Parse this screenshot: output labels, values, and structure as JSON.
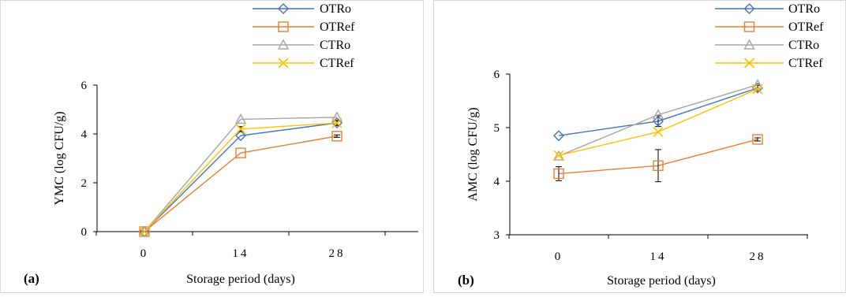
{
  "chart_data": [
    {
      "type": "line",
      "panel_label": "(a)",
      "xlabel": "Storage period (days)",
      "ylabel": "YMC (log CFU/g)",
      "categories": [
        "0",
        "14",
        "28"
      ],
      "ylim": [
        0,
        6
      ],
      "yticks": [
        "0",
        "2",
        "4",
        "6"
      ],
      "legend_position": "top-right",
      "grid": false,
      "series": [
        {
          "name": "OTRo",
          "values": [
            0,
            3.93,
            4.45
          ],
          "errors": [
            0,
            0,
            0.1
          ],
          "color": "#4472C4",
          "marker": "diamond"
        },
        {
          "name": "OTRef",
          "values": [
            0,
            3.22,
            3.91
          ],
          "errors": [
            0,
            0,
            0.05
          ],
          "color": "#ED7D31",
          "marker": "square"
        },
        {
          "name": "CTRo",
          "values": [
            0,
            4.6,
            4.68
          ],
          "errors": [
            0,
            0,
            0
          ],
          "color": "#A5A5A5",
          "marker": "triangle"
        },
        {
          "name": "CTRef",
          "values": [
            0,
            4.2,
            4.45
          ],
          "errors": [
            0,
            0.1,
            0.1
          ],
          "color": "#FFC000",
          "marker": "x"
        }
      ]
    },
    {
      "type": "line",
      "panel_label": "(b)",
      "xlabel": "Storage period (days)",
      "ylabel": "AMC (log CFU/g)",
      "categories": [
        "0",
        "14",
        "28"
      ],
      "ylim": [
        3,
        6
      ],
      "yticks": [
        "3",
        "4",
        "5",
        "6"
      ],
      "legend_position": "top-right",
      "grid": false,
      "series": [
        {
          "name": "OTRo",
          "values": [
            4.85,
            5.12,
            5.74
          ],
          "errors": [
            0,
            0.1,
            0.05
          ],
          "color": "#4472C4",
          "marker": "diamond"
        },
        {
          "name": "OTRef",
          "values": [
            4.14,
            4.29,
            4.78
          ],
          "errors": [
            0.13,
            0.3,
            0.03
          ],
          "color": "#ED7D31",
          "marker": "square"
        },
        {
          "name": "CTRo",
          "values": [
            4.47,
            5.24,
            5.8
          ],
          "errors": [
            0,
            0,
            0
          ],
          "color": "#A5A5A5",
          "marker": "triangle"
        },
        {
          "name": "CTRef",
          "values": [
            4.48,
            4.92,
            5.72
          ],
          "errors": [
            0,
            0,
            0
          ],
          "color": "#FFC000",
          "marker": "x"
        }
      ]
    }
  ]
}
